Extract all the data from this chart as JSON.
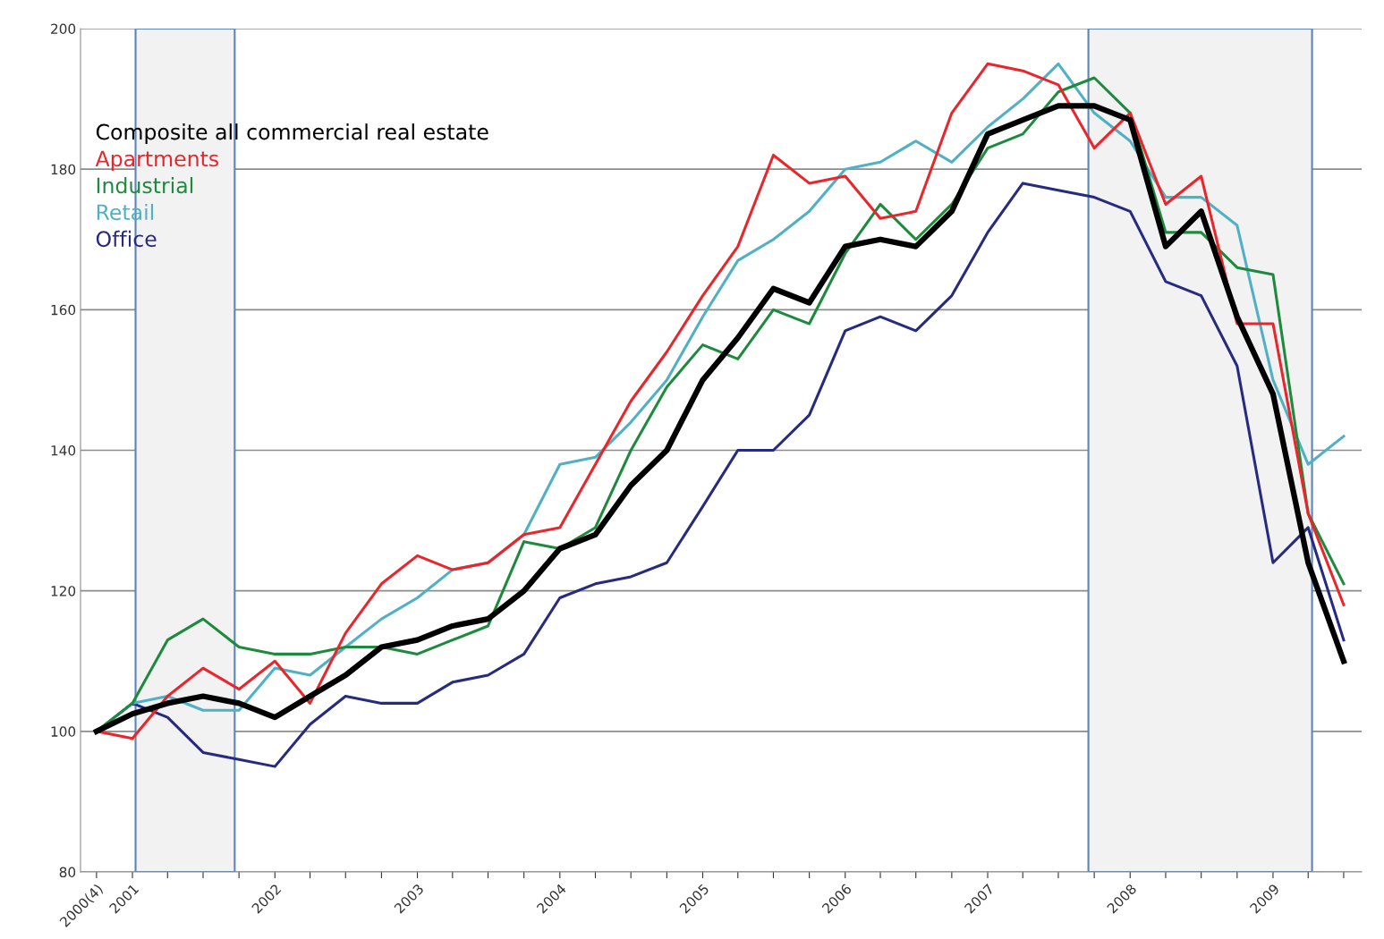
{
  "chart_data": {
    "type": "line",
    "x": [
      "2000-10",
      "2001-01",
      "2001-04",
      "2001-07",
      "2001-10",
      "2002-01",
      "2002-04",
      "2002-07",
      "2002-10",
      "2003-01",
      "2003-04",
      "2003-07",
      "2003-10",
      "2004-01",
      "2004-04",
      "2004-07",
      "2004-10",
      "2005-01",
      "2005-04",
      "2005-07",
      "2005-10",
      "2006-01",
      "2006-04",
      "2006-07",
      "2006-10",
      "2007-01",
      "2007-04",
      "2007-07",
      "2007-10",
      "2008-01",
      "2008-04",
      "2008-07",
      "2008-10",
      "2009-01",
      "2009-04",
      "2009-07"
    ],
    "series": [
      {
        "name": "Composite all commercial real estate",
        "color": "#000000",
        "values": [
          100,
          102.5,
          104,
          105,
          104,
          102,
          105,
          108,
          112,
          113,
          115,
          116,
          120,
          126,
          128,
          135,
          140,
          150,
          156,
          163,
          161,
          169,
          170,
          169,
          174,
          185,
          187,
          189,
          189,
          187,
          169,
          174,
          159,
          148,
          124,
          110
        ]
      },
      {
        "name": "Apartments",
        "color": "#e8262b",
        "values": [
          100,
          99,
          105,
          109,
          106,
          110,
          104,
          114,
          121,
          125,
          123,
          124,
          128,
          129,
          138,
          147,
          154,
          162,
          169,
          182,
          178,
          179,
          173,
          174,
          188,
          195,
          194,
          192,
          183,
          188,
          175,
          179,
          158,
          158,
          131,
          118
        ]
      },
      {
        "name": "Industrial",
        "color": "#1e8a3e",
        "values": [
          100,
          104,
          113,
          116,
          112,
          111,
          111,
          112,
          112,
          111,
          113,
          115,
          127,
          126,
          129,
          140,
          149,
          155,
          153,
          160,
          158,
          168,
          175,
          170,
          175,
          183,
          185,
          191,
          193,
          188,
          171,
          171,
          166,
          165,
          131,
          121
        ]
      },
      {
        "name": "Retail",
        "color": "#4fb0c6",
        "values": [
          100,
          104,
          105,
          103,
          103,
          109,
          108,
          112,
          116,
          119,
          123,
          124,
          128,
          138,
          139,
          144,
          150,
          159,
          167,
          170,
          174,
          180,
          181,
          184,
          181,
          186,
          190,
          195,
          188,
          184,
          176,
          176,
          172,
          150,
          138,
          142
        ]
      },
      {
        "name": "Office",
        "color": "#262a80",
        "values": [
          100,
          104,
          102,
          97,
          96,
          95,
          101,
          105,
          104,
          104,
          107,
          108,
          111,
          119,
          121,
          122,
          124,
          132,
          140,
          140,
          145,
          157,
          159,
          157,
          162,
          171,
          178,
          177,
          176,
          174,
          164,
          162,
          152,
          124,
          129,
          113
        ]
      }
    ],
    "xlim": [
      "2000-08-21",
      "2009-08-16"
    ],
    "xticks": [
      {
        "value": "2000-10",
        "label": "2000(4)"
      },
      {
        "value": "2001-01",
        "label": "2001"
      },
      {
        "value": "2001-04",
        "label": null
      },
      {
        "value": "2001-07",
        "label": null
      },
      {
        "value": "2001-10",
        "label": null
      },
      {
        "value": "2002-01",
        "label": "2002"
      },
      {
        "value": "2002-04",
        "label": null
      },
      {
        "value": "2002-07",
        "label": null
      },
      {
        "value": "2002-10",
        "label": null
      },
      {
        "value": "2003-01",
        "label": "2003"
      },
      {
        "value": "2003-04",
        "label": null
      },
      {
        "value": "2003-07",
        "label": null
      },
      {
        "value": "2003-10",
        "label": null
      },
      {
        "value": "2004-01",
        "label": "2004"
      },
      {
        "value": "2004-04",
        "label": null
      },
      {
        "value": "2004-07",
        "label": null
      },
      {
        "value": "2004-10",
        "label": null
      },
      {
        "value": "2005-01",
        "label": "2005"
      },
      {
        "value": "2005-04",
        "label": null
      },
      {
        "value": "2005-07",
        "label": null
      },
      {
        "value": "2005-10",
        "label": null
      },
      {
        "value": "2006-01",
        "label": "2006"
      },
      {
        "value": "2006-04",
        "label": null
      },
      {
        "value": "2006-07",
        "label": null
      },
      {
        "value": "2006-10",
        "label": null
      },
      {
        "value": "2007-01",
        "label": "2007"
      },
      {
        "value": "2007-04",
        "label": null
      },
      {
        "value": "2007-07",
        "label": null
      },
      {
        "value": "2007-10",
        "label": null
      },
      {
        "value": "2008-01",
        "label": "2008"
      },
      {
        "value": "2008-04",
        "label": null
      },
      {
        "value": "2008-07",
        "label": null
      },
      {
        "value": "2008-10",
        "label": null
      },
      {
        "value": "2009-01",
        "label": "2009"
      },
      {
        "value": "2009-04",
        "label": null
      },
      {
        "value": "2009-07",
        "label": null
      }
    ],
    "ylim": [
      80,
      200
    ],
    "yticks": [
      80,
      100,
      120,
      140,
      160,
      180,
      200
    ],
    "bands": [
      {
        "axis": "x",
        "from": "2001-01-09",
        "to": "2001-09-20",
        "color": "#f2f2f2"
      },
      {
        "axis": "x",
        "from": "2007-09-16",
        "to": "2009-04-11",
        "color": "#f2f2f2"
      }
    ],
    "grid": "y",
    "legend": "top left"
  }
}
